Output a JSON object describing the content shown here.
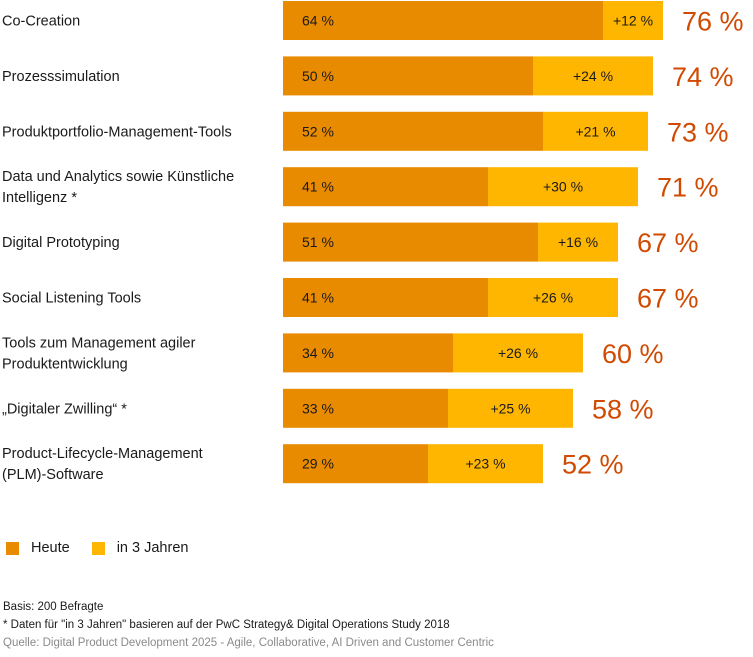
{
  "chart_data": {
    "type": "bar",
    "stacked": true,
    "orientation": "horizontal",
    "categories": [
      [
        "Co-Creation"
      ],
      [
        "Prozesssimulation"
      ],
      [
        "Produktportfolio-Management-Tools"
      ],
      [
        "Data und Analytics sowie Künstliche",
        "Intelligenz *"
      ],
      [
        "Digital Prototyping"
      ],
      [
        "Social Listening Tools"
      ],
      [
        "Tools zum Management agiler",
        "Produktentwicklung"
      ],
      [
        "„Digitaler Zwilling“ *"
      ],
      [
        "Product-Lifecycle-Management",
        "(PLM)-Software"
      ]
    ],
    "series": [
      {
        "name": "Heute",
        "values": [
          64,
          50,
          52,
          41,
          51,
          41,
          34,
          33,
          29
        ],
        "labels": [
          "64 %",
          "50 %",
          "52 %",
          "41 %",
          "51 %",
          "41 %",
          "34 %",
          "33 %",
          "29 %"
        ]
      },
      {
        "name": "in 3 Jahren",
        "values": [
          12,
          24,
          21,
          30,
          16,
          26,
          26,
          25,
          23
        ],
        "labels": [
          "+12 %",
          "+24 %",
          "+21 %",
          "+30 %",
          "+16 %",
          "+26 %",
          "+26 %",
          "+25 %",
          "+23 %"
        ]
      }
    ],
    "totals": [
      76,
      74,
      73,
      71,
      67,
      67,
      60,
      58,
      52
    ],
    "total_labels": [
      "76 %",
      "74 %",
      "73 %",
      "71 %",
      "67 %",
      "67 %",
      "60 %",
      "58 %",
      "52 %"
    ],
    "xlim": [
      0,
      100
    ],
    "grid": false,
    "legend_position": "bottom-left"
  },
  "colors": {
    "heute": "#e88b00",
    "in3jahren": "#ffb600",
    "total": "#d04a02",
    "text": "#1a1a1a",
    "source": "#8a8a8a"
  },
  "legend": {
    "heute": "Heute",
    "in3jahren": "in 3 Jahren"
  },
  "notes": {
    "basis": "Basis: 200 Befragte",
    "footnote": "* Daten für \"in 3 Jahren\" basieren auf der PwC Strategy& Digital Operations Study 2018",
    "source": "Quelle: Digital Product Development 2025 - Agile, Collaborative, AI Driven and Customer Centric"
  }
}
